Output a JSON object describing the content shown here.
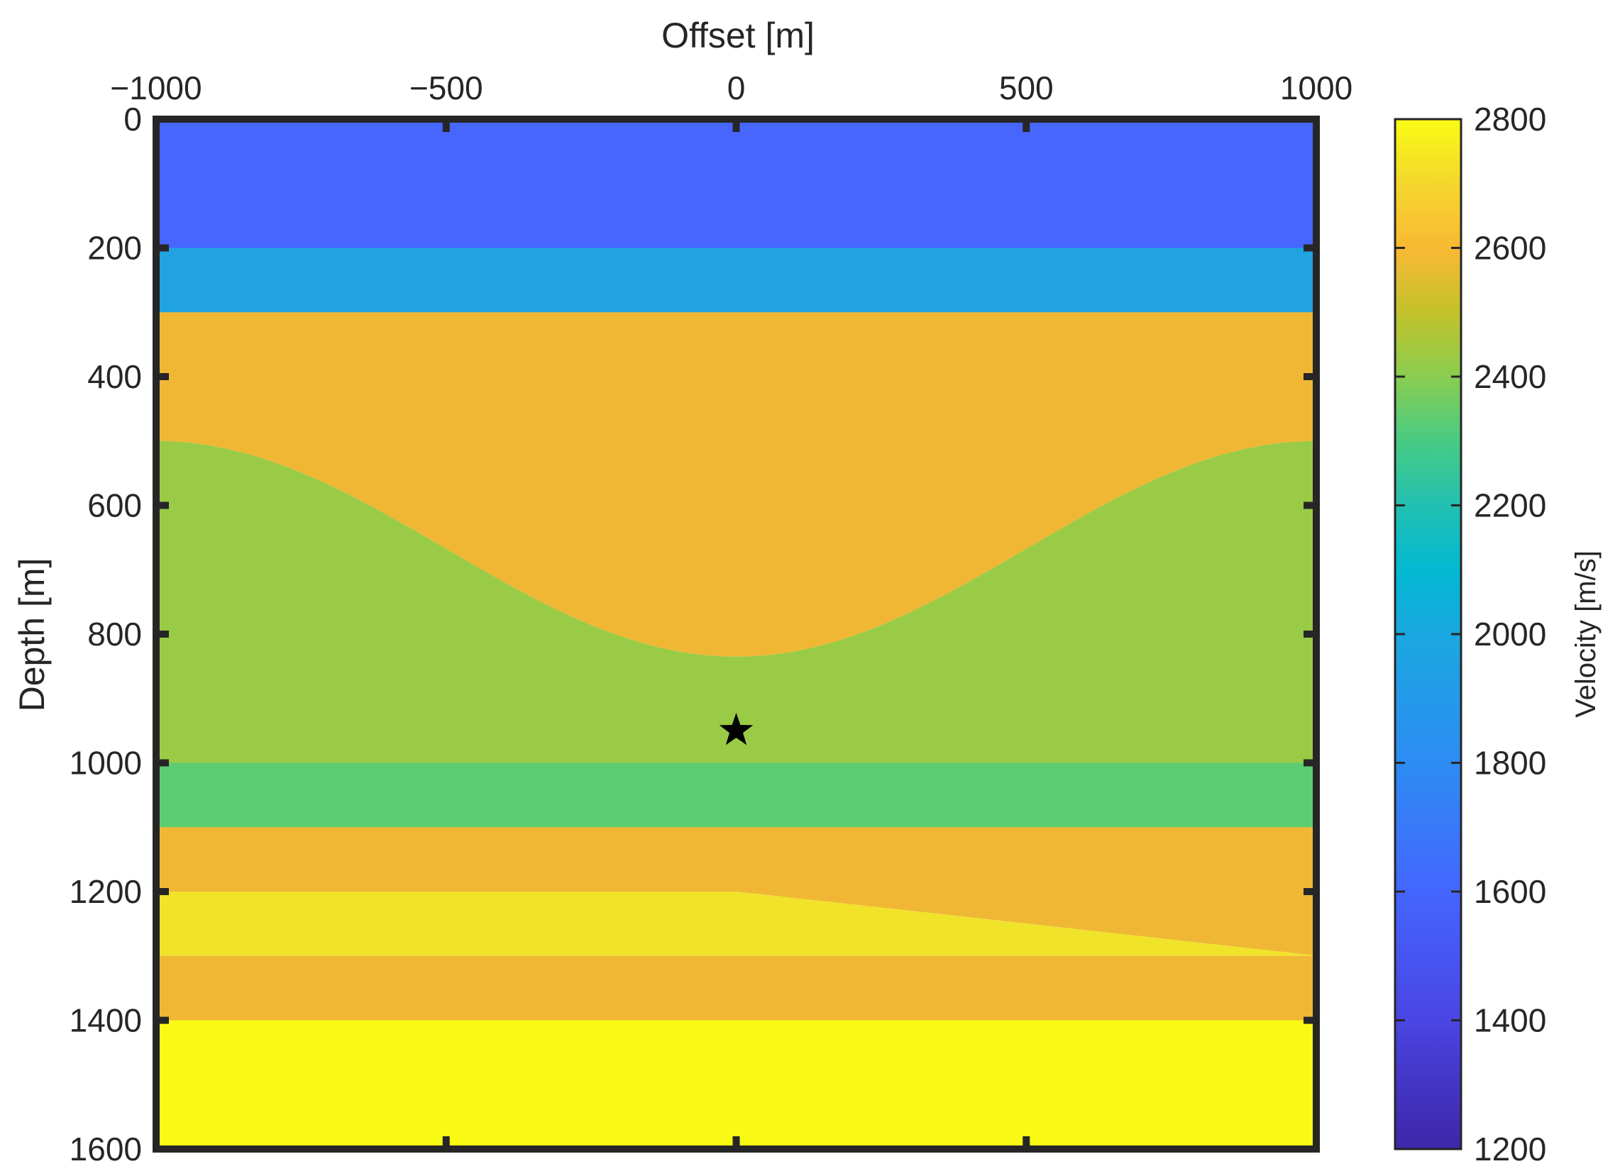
{
  "chart_data": {
    "type": "heatmap",
    "xlabel": "Offset [m]",
    "ylabel": "Depth [m]",
    "xlim": [
      -1000,
      1000
    ],
    "ylim": [
      0,
      1600
    ],
    "y_reversed": true,
    "x_axis_location": "top",
    "x_ticks": [
      -1000,
      -500,
      0,
      500,
      1000
    ],
    "x_tick_labels": [
      "−1000",
      "−500",
      "0",
      "500",
      "1000"
    ],
    "y_ticks": [
      0,
      200,
      400,
      600,
      800,
      1000,
      1200,
      1400,
      1600
    ],
    "y_tick_labels": [
      "0",
      "200",
      "400",
      "600",
      "800",
      "1000",
      "1200",
      "1400",
      "1600"
    ],
    "colorbar": {
      "label": "Velocity [m/s]",
      "range": [
        1200,
        2800
      ],
      "ticks": [
        1200,
        1400,
        1600,
        1800,
        2000,
        2200,
        2400,
        2600,
        2800
      ],
      "tick_labels": [
        "1200",
        "1400",
        "1600",
        "1800",
        "2000",
        "2200",
        "2400",
        "2600",
        "2800"
      ],
      "colormap": "parula"
    },
    "layers": [
      {
        "velocity": 1500,
        "color": "#4766FE",
        "top_depth": 0,
        "bottom_depth": 200
      },
      {
        "velocity": 1800,
        "color": "#21A3E1",
        "top_depth": 200,
        "bottom_depth": 300
      },
      {
        "velocity": 2600,
        "color": "#F0B735",
        "top_depth": 300,
        "bottom_depth_profile": "bump",
        "bottom_depth_edges": 500,
        "bottom_depth_center": 835
      },
      {
        "velocity": 2300,
        "color": "#9ACB46",
        "top_depth_profile": "bump",
        "bottom_depth": 1000
      },
      {
        "velocity": 2200,
        "color": "#5DCC73",
        "top_depth": 1000,
        "bottom_depth": 1100
      },
      {
        "velocity": 2600,
        "color": "#F0B735",
        "top_depth": 1100,
        "bottom_depth_profile": "wedge",
        "bottom_depth_left": 1200,
        "bottom_depth_right": 1200,
        "bottom_depth_right_end": 1200
      },
      {
        "velocity": 2700,
        "color": "#F1E22A",
        "top_depth_profile": "wedge",
        "top_profile_points": [
          [
            -1000,
            1200
          ],
          [
            0,
            1200
          ],
          [
            1000,
            1300
          ]
        ],
        "bottom_depth": 1300
      },
      {
        "velocity": 2600,
        "color": "#F0B735",
        "top_depth": 1300,
        "bottom_depth": 1400
      },
      {
        "velocity": 2800,
        "color": "#F9FA14",
        "top_depth": 1400,
        "bottom_depth": 1600
      }
    ],
    "source": {
      "marker": "star",
      "color": "#000000",
      "x": 0,
      "y": 950
    }
  }
}
